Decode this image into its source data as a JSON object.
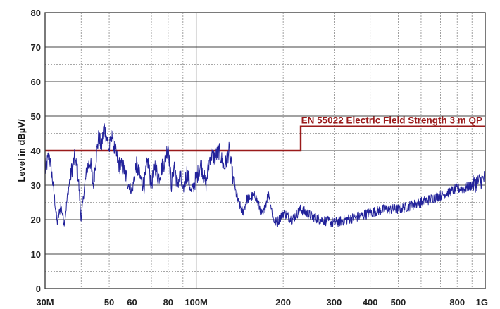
{
  "chart_data": {
    "type": "line",
    "title": "",
    "xlabel": "",
    "ylabel": "Level in dBµV/",
    "x_scale": "log",
    "x_unit": "Hz",
    "xlim": [
      30000000,
      1000000000
    ],
    "ylim": [
      0,
      80
    ],
    "grid": true,
    "colors": {
      "measurement": "#22229a",
      "limit": "#9a1a1a",
      "major_grid": "#444444",
      "minor_grid": "#8a8a8a"
    },
    "y_ticks": [
      {
        "value": 0,
        "label": "0"
      },
      {
        "value": 10,
        "label": "10"
      },
      {
        "value": 20,
        "label": "20"
      },
      {
        "value": 30,
        "label": "30"
      },
      {
        "value": 40,
        "label": "40"
      },
      {
        "value": 50,
        "label": "50"
      },
      {
        "value": 60,
        "label": "60"
      },
      {
        "value": 70,
        "label": "70"
      },
      {
        "value": 80,
        "label": "80"
      }
    ],
    "x_ticks": [
      {
        "value": 30000000,
        "label": "30M"
      },
      {
        "value": 50000000,
        "label": "50"
      },
      {
        "value": 60000000,
        "label": "60"
      },
      {
        "value": 80000000,
        "label": "80"
      },
      {
        "value": 100000000,
        "label": "100M"
      },
      {
        "value": 200000000,
        "label": "200"
      },
      {
        "value": 300000000,
        "label": "300"
      },
      {
        "value": 400000000,
        "label": "400"
      },
      {
        "value": 500000000,
        "label": "500"
      },
      {
        "value": 800000000,
        "label": "800"
      },
      {
        "value": 1000000000,
        "label": "1G"
      }
    ],
    "series": [
      {
        "role": "measurement",
        "x": [
          30000000,
          31000000,
          32000000,
          33000000,
          34000000,
          35000000,
          36000000,
          37000000,
          38000000,
          39000000,
          40000000,
          41000000,
          42000000,
          43000000,
          44000000,
          45000000,
          46000000,
          47000000,
          48000000,
          49000000,
          50000000,
          51000000,
          52000000,
          54000000,
          56000000,
          58000000,
          60000000,
          62000000,
          64000000,
          66000000,
          68000000,
          70000000,
          72000000,
          74000000,
          76000000,
          78000000,
          80000000,
          82000000,
          84000000,
          86000000,
          88000000,
          90000000,
          93000000,
          96000000,
          100000000,
          104000000,
          108000000,
          112000000,
          116000000,
          120000000,
          125000000,
          130000000,
          135000000,
          140000000,
          145000000,
          150000000,
          160000000,
          170000000,
          178000000,
          185000000,
          190000000,
          200000000,
          215000000,
          230000000,
          250000000,
          270000000,
          300000000,
          330000000,
          370000000,
          400000000,
          450000000,
          500000000,
          550000000,
          600000000,
          650000000,
          700000000,
          750000000,
          800000000,
          850000000,
          900000000,
          950000000,
          1000000000
        ],
        "y": [
          34,
          39,
          30,
          19,
          24,
          19,
          28,
          34,
          38,
          33,
          20,
          29,
          35,
          37,
          30,
          38,
          44,
          41,
          47,
          44,
          40,
          45,
          41,
          36,
          35,
          31,
          28,
          36,
          32,
          30,
          37,
          30,
          36,
          32,
          35,
          37,
          42,
          30,
          36,
          30,
          33,
          28,
          34,
          28,
          32,
          36,
          30,
          39,
          38,
          40,
          35,
          40,
          30,
          25,
          22,
          26,
          27,
          21,
          28,
          20,
          19,
          22,
          20,
          23,
          21,
          20,
          19,
          20,
          21,
          22,
          23,
          23,
          24,
          25,
          26,
          27,
          28,
          29,
          29,
          30,
          31,
          32
        ]
      },
      {
        "role": "limit",
        "name": "EN 55022 Electric Field Strength 3 m QP",
        "x": [
          30000000,
          230000000,
          230000000,
          1000000000
        ],
        "y": [
          40,
          40,
          47,
          47
        ]
      }
    ]
  }
}
